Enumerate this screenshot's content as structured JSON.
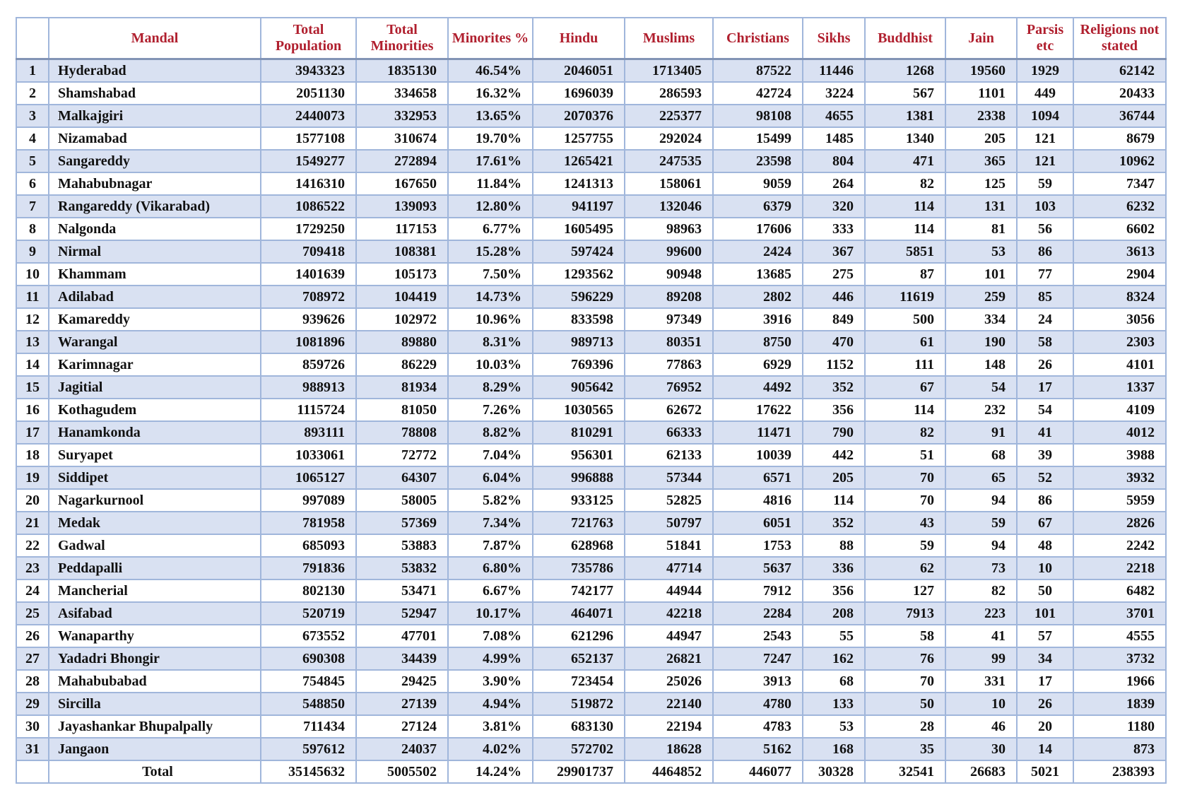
{
  "colors": {
    "stripe": "#D9E1F2",
    "border": "#A0B6DB",
    "header_rule": "#8294B5",
    "header_text": "#B01F2E"
  },
  "chart_data": {
    "type": "table",
    "columns": [
      "",
      "Mandal",
      "Total Population",
      "Total Minorities",
      "Minorites %",
      "Hindu",
      "Muslims",
      "Christians",
      "Sikhs",
      "Buddhist",
      "Jain",
      "Parsis etc",
      "Religions not stated"
    ],
    "rows": [
      [
        "1",
        "Hyderabad",
        "3943323",
        "1835130",
        "46.54%",
        "2046051",
        "1713405",
        "87522",
        "11446",
        "1268",
        "19560",
        "1929",
        "62142"
      ],
      [
        "2",
        "Shamshabad",
        "2051130",
        "334658",
        "16.32%",
        "1696039",
        "286593",
        "42724",
        "3224",
        "567",
        "1101",
        "449",
        "20433"
      ],
      [
        "3",
        "Malkajgiri",
        "2440073",
        "332953",
        "13.65%",
        "2070376",
        "225377",
        "98108",
        "4655",
        "1381",
        "2338",
        "1094",
        "36744"
      ],
      [
        "4",
        "Nizamabad",
        "1577108",
        "310674",
        "19.70%",
        "1257755",
        "292024",
        "15499",
        "1485",
        "1340",
        "205",
        "121",
        "8679"
      ],
      [
        "5",
        "Sangareddy",
        "1549277",
        "272894",
        "17.61%",
        "1265421",
        "247535",
        "23598",
        "804",
        "471",
        "365",
        "121",
        "10962"
      ],
      [
        "6",
        "Mahabubnagar",
        "1416310",
        "167650",
        "11.84%",
        "1241313",
        "158061",
        "9059",
        "264",
        "82",
        "125",
        "59",
        "7347"
      ],
      [
        "7",
        "Rangareddy (Vikarabad)",
        "1086522",
        "139093",
        "12.80%",
        "941197",
        "132046",
        "6379",
        "320",
        "114",
        "131",
        "103",
        "6232"
      ],
      [
        "8",
        "Nalgonda",
        "1729250",
        "117153",
        "6.77%",
        "1605495",
        "98963",
        "17606",
        "333",
        "114",
        "81",
        "56",
        "6602"
      ],
      [
        "9",
        "Nirmal",
        "709418",
        "108381",
        "15.28%",
        "597424",
        "99600",
        "2424",
        "367",
        "5851",
        "53",
        "86",
        "3613"
      ],
      [
        "10",
        "Khammam",
        "1401639",
        "105173",
        "7.50%",
        "1293562",
        "90948",
        "13685",
        "275",
        "87",
        "101",
        "77",
        "2904"
      ],
      [
        "11",
        "Adilabad",
        "708972",
        "104419",
        "14.73%",
        "596229",
        "89208",
        "2802",
        "446",
        "11619",
        "259",
        "85",
        "8324"
      ],
      [
        "12",
        "Kamareddy",
        "939626",
        "102972",
        "10.96%",
        "833598",
        "97349",
        "3916",
        "849",
        "500",
        "334",
        "24",
        "3056"
      ],
      [
        "13",
        "Warangal",
        "1081896",
        "89880",
        "8.31%",
        "989713",
        "80351",
        "8750",
        "470",
        "61",
        "190",
        "58",
        "2303"
      ],
      [
        "14",
        "Karimnagar",
        "859726",
        "86229",
        "10.03%",
        "769396",
        "77863",
        "6929",
        "1152",
        "111",
        "148",
        "26",
        "4101"
      ],
      [
        "15",
        "Jagitial",
        "988913",
        "81934",
        "8.29%",
        "905642",
        "76952",
        "4492",
        "352",
        "67",
        "54",
        "17",
        "1337"
      ],
      [
        "16",
        "Kothagudem",
        "1115724",
        "81050",
        "7.26%",
        "1030565",
        "62672",
        "17622",
        "356",
        "114",
        "232",
        "54",
        "4109"
      ],
      [
        "17",
        "Hanamkonda",
        "893111",
        "78808",
        "8.82%",
        "810291",
        "66333",
        "11471",
        "790",
        "82",
        "91",
        "41",
        "4012"
      ],
      [
        "18",
        "Suryapet",
        "1033061",
        "72772",
        "7.04%",
        "956301",
        "62133",
        "10039",
        "442",
        "51",
        "68",
        "39",
        "3988"
      ],
      [
        "19",
        "Siddipet",
        "1065127",
        "64307",
        "6.04%",
        "996888",
        "57344",
        "6571",
        "205",
        "70",
        "65",
        "52",
        "3932"
      ],
      [
        "20",
        "Nagarkurnool",
        "997089",
        "58005",
        "5.82%",
        "933125",
        "52825",
        "4816",
        "114",
        "70",
        "94",
        "86",
        "5959"
      ],
      [
        "21",
        "Medak",
        "781958",
        "57369",
        "7.34%",
        "721763",
        "50797",
        "6051",
        "352",
        "43",
        "59",
        "67",
        "2826"
      ],
      [
        "22",
        "Gadwal",
        "685093",
        "53883",
        "7.87%",
        "628968",
        "51841",
        "1753",
        "88",
        "59",
        "94",
        "48",
        "2242"
      ],
      [
        "23",
        "Peddapalli",
        "791836",
        "53832",
        "6.80%",
        "735786",
        "47714",
        "5637",
        "336",
        "62",
        "73",
        "10",
        "2218"
      ],
      [
        "24",
        "Mancherial",
        "802130",
        "53471",
        "6.67%",
        "742177",
        "44944",
        "7912",
        "356",
        "127",
        "82",
        "50",
        "6482"
      ],
      [
        "25",
        "Asifabad",
        "520719",
        "52947",
        "10.17%",
        "464071",
        "42218",
        "2284",
        "208",
        "7913",
        "223",
        "101",
        "3701"
      ],
      [
        "26",
        "Wanaparthy",
        "673552",
        "47701",
        "7.08%",
        "621296",
        "44947",
        "2543",
        "55",
        "58",
        "41",
        "57",
        "4555"
      ],
      [
        "27",
        "Yadadri Bhongir",
        "690308",
        "34439",
        "4.99%",
        "652137",
        "26821",
        "7247",
        "162",
        "76",
        "99",
        "34",
        "3732"
      ],
      [
        "28",
        "Mahabubabad",
        "754845",
        "29425",
        "3.90%",
        "723454",
        "25026",
        "3913",
        "68",
        "70",
        "331",
        "17",
        "1966"
      ],
      [
        "29",
        "Sircilla",
        "548850",
        "27139",
        "4.94%",
        "519872",
        "22140",
        "4780",
        "133",
        "50",
        "10",
        "26",
        "1839"
      ],
      [
        "30",
        "Jayashankar Bhupalpally",
        "711434",
        "27124",
        "3.81%",
        "683130",
        "22194",
        "4783",
        "53",
        "28",
        "46",
        "20",
        "1180"
      ],
      [
        "31",
        "Jangaon",
        "597612",
        "24037",
        "4.02%",
        "572702",
        "18628",
        "5162",
        "168",
        "35",
        "30",
        "14",
        "873"
      ]
    ],
    "total_row": [
      "",
      "Total",
      "35145632",
      "5005502",
      "14.24%",
      "29901737",
      "4464852",
      "446077",
      "30328",
      "32541",
      "26683",
      "5021",
      "238393"
    ]
  }
}
